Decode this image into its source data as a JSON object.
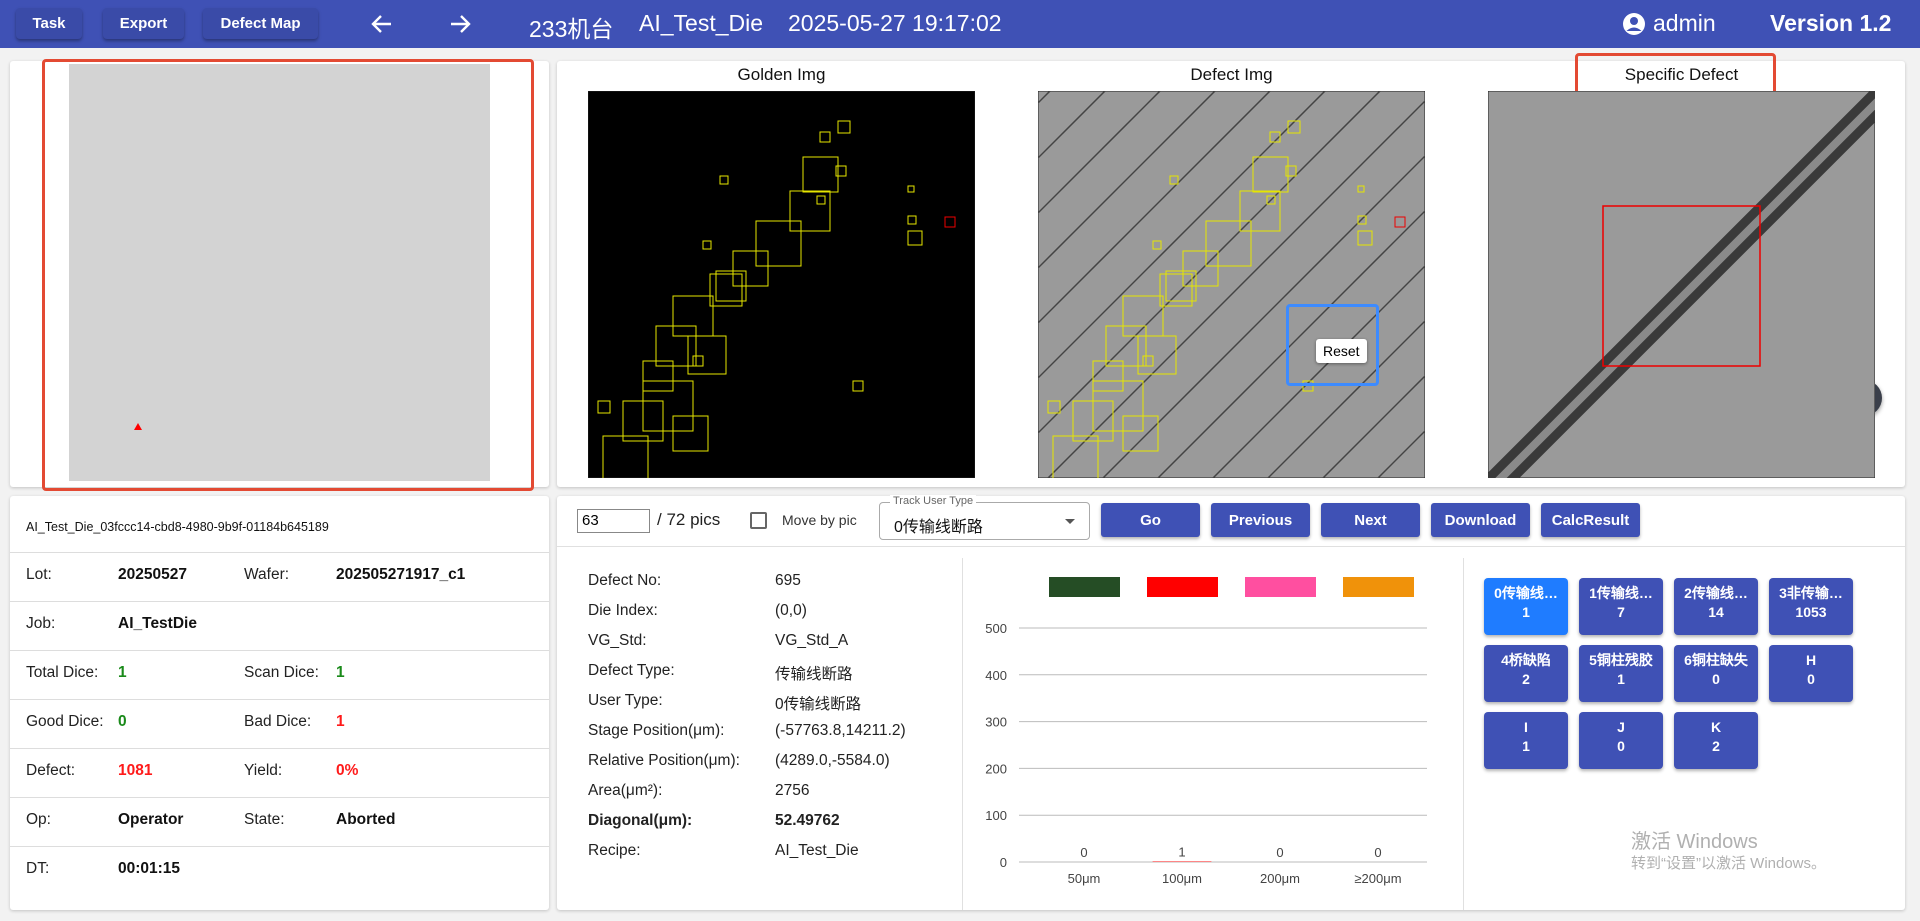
{
  "header": {
    "buttons": [
      "Task",
      "Export",
      "Defect Map"
    ],
    "machine": "233机台",
    "die": "AI_Test_Die",
    "time": "2025-05-27 19:17:02",
    "user": "admin",
    "version": "Version 1.2"
  },
  "images": {
    "titles": [
      "Golden Img",
      "Defect Img",
      "Specific Defect"
    ],
    "reset": "Reset"
  },
  "info": {
    "id": "AI_Test_Die_03fccc14-cbd8-4980-9b9f-01184b645189",
    "rows": [
      [
        {
          "label": "Lot:",
          "value": "20250527"
        },
        {
          "label": "Wafer:",
          "value": "202505271917_c1"
        }
      ],
      [
        {
          "label": "Job:",
          "value": "AI_TestDie"
        }
      ],
      [
        {
          "label": "Total Dice:",
          "value": "1",
          "color": "#1a8a1a"
        },
        {
          "label": "Scan Dice:",
          "value": "1",
          "color": "#1a8a1a"
        }
      ],
      [
        {
          "label": "Good Dice:",
          "value": "0",
          "color": "#1a8a1a"
        },
        {
          "label": "Bad Dice:",
          "value": "1",
          "color": "#ff1a1a"
        }
      ],
      [
        {
          "label": "Defect:",
          "value": "1081",
          "color": "#ff1a1a"
        },
        {
          "label": "Yield:",
          "value": "0%",
          "color": "#ff1a1a"
        }
      ],
      [
        {
          "label": "Op:",
          "value": "Operator"
        },
        {
          "label": "State:",
          "value": "Aborted"
        }
      ],
      [
        {
          "label": "DT:",
          "value": "00:01:15"
        }
      ]
    ]
  },
  "controls": {
    "page": "63",
    "total": "/ 72 pics",
    "move": "Move by pic",
    "track_label": "Track User Type",
    "track_value": "0传输线断路",
    "buttons": [
      "Go",
      "Previous",
      "Next",
      "Download",
      "CalcResult"
    ]
  },
  "details": [
    {
      "label": "Defect No:",
      "value": "695"
    },
    {
      "label": "Die Index:",
      "value": "(0,0)"
    },
    {
      "label": "VG_Std:",
      "value": "VG_Std_A"
    },
    {
      "label": "Defect Type:",
      "value": "传输线断路"
    },
    {
      "label": "User Type:",
      "value": "0传输线断路"
    },
    {
      "label": "Stage Position(μm):",
      "value": "(-57763.8,14211.2)"
    },
    {
      "label": "Relative Position(μm):",
      "value": "(4289.0,-5584.0)"
    },
    {
      "label": "Area(μm²):",
      "value": "2756"
    },
    {
      "label": "Diagonal(μm):",
      "value": "52.49762",
      "bold": true
    },
    {
      "label": "Recipe:",
      "value": "AI_Test_Die"
    }
  ],
  "chart_data": {
    "type": "bar",
    "categories": [
      "50μm",
      "100μm",
      "200μm",
      "≥200μm"
    ],
    "values": [
      0,
      1,
      0,
      0
    ],
    "colors": [
      "#254d25",
      "#ff0000",
      "#ff4fa0",
      "#f0920a"
    ],
    "ylim": [
      0,
      500
    ],
    "yticks": [
      0,
      100,
      200,
      300,
      400,
      500
    ],
    "grid": true
  },
  "types": [
    {
      "label": "0传输线…",
      "count": "1",
      "active": true
    },
    {
      "label": "1传输线…",
      "count": "7"
    },
    {
      "label": "2传输线…",
      "count": "14"
    },
    {
      "label": "3非传输…",
      "count": "1053"
    },
    {
      "label": "4桥缺陷",
      "count": "2"
    },
    {
      "label": "5铜柱残胶",
      "count": "1"
    },
    {
      "label": "6铜柱缺失",
      "count": "0"
    },
    {
      "label": "H",
      "count": "0"
    },
    {
      "label": "I",
      "count": "1"
    },
    {
      "label": "J",
      "count": "0"
    },
    {
      "label": "K",
      "count": "2"
    }
  ],
  "watermark": [
    "激活 Windows",
    "转到“设置”以激活 Windows。"
  ]
}
